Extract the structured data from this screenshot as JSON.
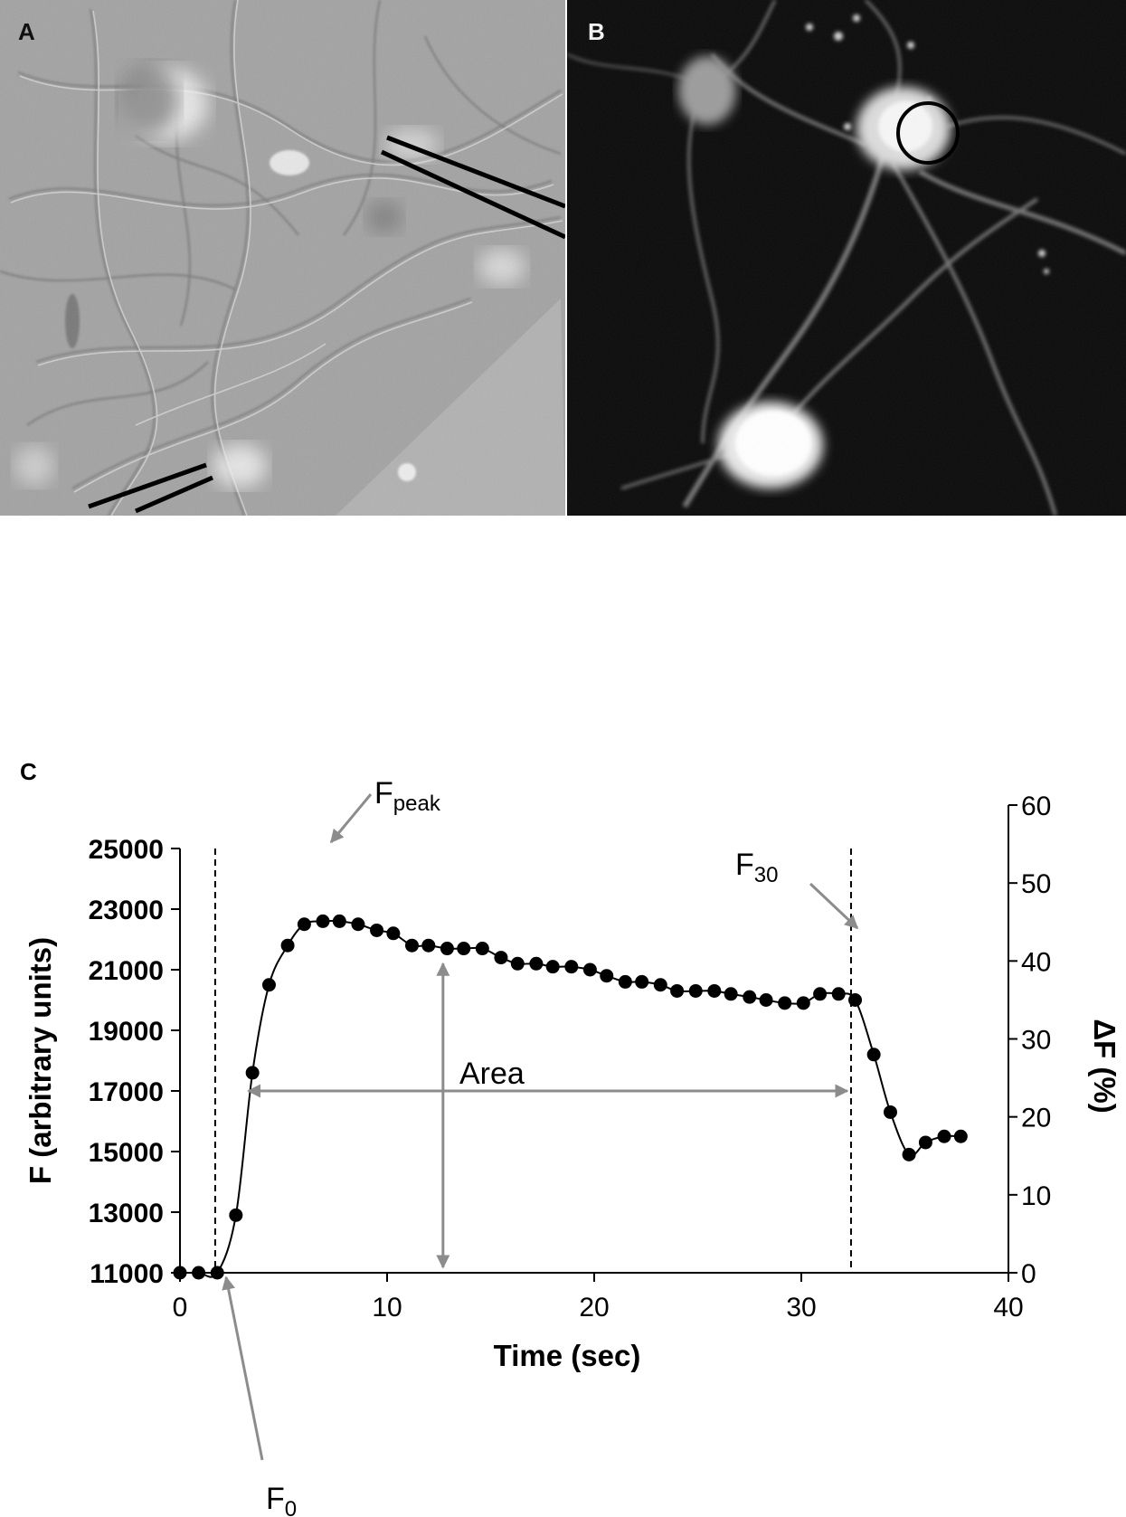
{
  "panels": {
    "a": {
      "label": "A"
    },
    "b": {
      "label": "B"
    },
    "c": {
      "label": "C"
    }
  },
  "colors": {
    "marker": "#000000",
    "annotation_arrow": "#8c8c8c",
    "dashed_line": "#000000"
  },
  "chart_data": {
    "type": "line",
    "xlabel": "Time (sec)",
    "ylabel": "F (arbitrary units)",
    "y2label": "ΔF (%)",
    "xlim": [
      0,
      40
    ],
    "ylim": [
      11000,
      25000
    ],
    "y2lim": [
      0,
      60
    ],
    "xticks": [
      "0",
      "10",
      "20",
      "30",
      "40"
    ],
    "yticks": [
      "11000",
      "13000",
      "15000",
      "17000",
      "19000",
      "21000",
      "23000",
      "25000"
    ],
    "y2ticks": [
      "0",
      "10",
      "20",
      "30",
      "40",
      "50",
      "60"
    ],
    "grid": false,
    "series": [
      {
        "x": [
          0,
          0.9,
          1.8,
          2.7,
          3.5,
          4.3,
          5.2,
          6.0,
          6.9,
          7.7,
          8.6,
          9.5,
          10.3,
          11.2,
          12.0,
          12.9,
          13.7,
          14.6,
          15.5,
          16.3,
          17.2,
          18.0,
          18.9,
          19.8,
          20.6,
          21.5,
          22.3,
          23.2,
          24.0,
          24.9,
          25.8,
          26.6,
          27.5,
          28.3,
          29.2,
          30.1,
          30.9,
          31.8,
          32.6,
          33.5,
          34.3,
          35.2,
          36.0,
          36.9,
          37.7
        ],
        "y": [
          11000,
          11000,
          11000,
          12900,
          17600,
          20500,
          21800,
          22500,
          22600,
          22600,
          22500,
          22300,
          22200,
          21800,
          21800,
          21700,
          21700,
          21700,
          21400,
          21200,
          21200,
          21100,
          21100,
          21000,
          20800,
          20600,
          20600,
          20500,
          20300,
          20300,
          20300,
          20200,
          20100,
          20000,
          19900,
          19900,
          20200,
          20200,
          20000,
          18200,
          16300,
          14900,
          15300,
          15500,
          15500
        ]
      }
    ],
    "annotations": {
      "f_peak_main": "F",
      "f_peak_sub": "peak",
      "f30_main": "F",
      "f30_sub": "30",
      "f0_main": "F",
      "f0_sub": "0",
      "area": "Area"
    },
    "dashed_lines_x": [
      1.7,
      32.4
    ],
    "area_arrow": {
      "x_start": 3.3,
      "x_end": 32.4,
      "y": 17000
    },
    "vertical_arrow": {
      "x": 12.7,
      "y_start": 11000,
      "y_end": 21200
    }
  }
}
